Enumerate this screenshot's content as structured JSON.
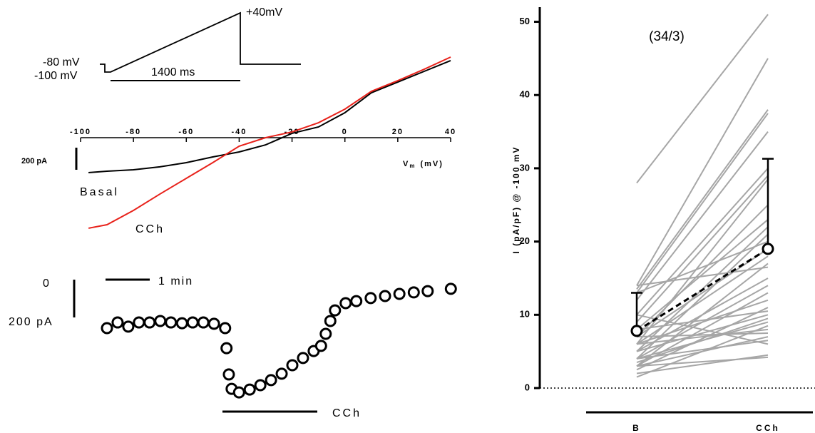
{
  "chart_data": [
    {
      "type": "line",
      "protocol": {
        "peak_label": "+40mV",
        "holding_label": "-80 mV",
        "step_label": "-100 mV",
        "duration_label": "1400 ms"
      },
      "xlim": [
        -100,
        40
      ],
      "xticks": [
        -100,
        -80,
        -60,
        -40,
        -20,
        0,
        20,
        40
      ],
      "xlabel_symbol": "V",
      "xlabel_subscript": "m",
      "xlabel_unit": "(mV)",
      "scale_bar_label": "200 pA",
      "x": [
        -97,
        -90,
        -80,
        -70,
        -60,
        -50,
        -40,
        -30,
        -20,
        -10,
        0,
        10,
        20,
        30,
        40
      ],
      "series": [
        {
          "name": "Basal",
          "color": "#000000",
          "values": [
            -316,
            -303,
            -290,
            -264,
            -226,
            -174,
            -129,
            -65,
            39,
            97,
            226,
            406,
            503,
            600,
            697
          ]
        },
        {
          "name": "CCh",
          "color": "#e8221b",
          "values": [
            -819,
            -787,
            -658,
            -510,
            -368,
            -226,
            -77,
            0,
            52,
            135,
            258,
            419,
            516,
            619,
            729
          ]
        }
      ]
    },
    {
      "type": "scatter",
      "time_scale_label": "1 min",
      "zero_label": "0",
      "current_scale_label": "200 pA",
      "drug_label": "CCh",
      "x": [
        0,
        0.23,
        0.46,
        0.69,
        0.92,
        1.15,
        1.38,
        1.62,
        1.85,
        2.08,
        2.31,
        2.55,
        2.58,
        2.63,
        2.69,
        2.85,
        3.08,
        3.31,
        3.54,
        3.77,
        4.0,
        4.23,
        4.46,
        4.62,
        4.72,
        4.82,
        4.92,
        5.15,
        5.38,
        5.69,
        6.0,
        6.31,
        6.62,
        6.92,
        7.42
      ],
      "values": [
        -234,
        -204,
        -226,
        -204,
        -204,
        -196,
        -204,
        -208,
        -204,
        -204,
        -211,
        -234,
        -340,
        -479,
        -555,
        -574,
        -559,
        -536,
        -509,
        -475,
        -430,
        -392,
        -355,
        -328,
        -264,
        -196,
        -140,
        -102,
        -91,
        -75,
        -64,
        -53,
        -45,
        -38,
        -26
      ]
    },
    {
      "type": "paired",
      "ylabel": "I (pA/pF) @ -100 mV",
      "annotation": "(34/3)",
      "categories": [
        "B",
        "CCh"
      ],
      "ylim": [
        0,
        52
      ],
      "yticks": [
        0,
        10,
        20,
        30,
        40,
        50
      ],
      "pairs": [
        [
          28,
          51
        ],
        [
          14,
          45
        ],
        [
          13.5,
          38
        ],
        [
          13,
          37.5
        ],
        [
          12,
          35
        ],
        [
          10,
          30
        ],
        [
          9,
          29
        ],
        [
          7,
          25
        ],
        [
          6,
          28.5
        ],
        [
          8,
          23
        ],
        [
          5,
          22
        ],
        [
          4,
          21
        ],
        [
          13,
          20
        ],
        [
          7,
          19
        ],
        [
          6,
          18
        ],
        [
          3,
          17
        ],
        [
          14,
          16.5
        ],
        [
          5,
          15
        ],
        [
          4,
          14
        ],
        [
          3,
          13
        ],
        [
          6,
          12
        ],
        [
          2.5,
          11
        ],
        [
          8,
          10.5
        ],
        [
          5,
          10
        ],
        [
          3.5,
          9.5
        ],
        [
          4,
          9
        ],
        [
          1.5,
          8.5
        ],
        [
          6,
          8
        ],
        [
          7,
          7.5
        ],
        [
          3,
          7
        ],
        [
          4,
          6.5
        ],
        [
          10,
          6
        ],
        [
          2,
          4.5
        ],
        [
          3,
          4.2
        ]
      ],
      "pair_color": "#a6a6a6",
      "mean": [
        7.8,
        19
      ],
      "error": [
        5.2,
        12.3
      ]
    }
  ]
}
